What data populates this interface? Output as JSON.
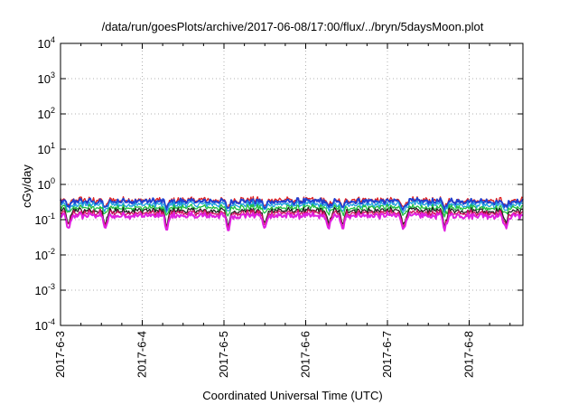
{
  "chart_data": {
    "type": "line",
    "title": "/data/run/goesPlots/archive/2017-06-08/17:00/flux/../bryn/5daysMoon.plot",
    "xlabel": "Coordinated Universal Time (UTC)",
    "ylabel": "cGy/day",
    "yscale": "log",
    "grid": true,
    "ylim": [
      0.0001,
      10000
    ],
    "xlim": [
      "2017-06-03",
      "2017-06-08 18:00"
    ],
    "x_ticks": [
      "2017-6-3",
      "2017-6-4",
      "2017-6-5",
      "2017-6-6",
      "2017-6-7",
      "2017-6-8"
    ],
    "y_ticks": [
      {
        "value": 0.0001,
        "base": "10",
        "exp": "-4"
      },
      {
        "value": 0.001,
        "base": "10",
        "exp": "-3"
      },
      {
        "value": 0.01,
        "base": "10",
        "exp": "-2"
      },
      {
        "value": 0.1,
        "base": "10",
        "exp": "-1"
      },
      {
        "value": 1,
        "base": "10",
        "exp": "0"
      },
      {
        "value": 10,
        "base": "10",
        "exp": "1"
      },
      {
        "value": 100,
        "base": "10",
        "exp": "2"
      },
      {
        "value": 1000,
        "base": "10",
        "exp": "3"
      },
      {
        "value": 10000,
        "base": "10",
        "exp": "4"
      }
    ],
    "series": [
      {
        "color": "#e02020",
        "level": 0.36
      },
      {
        "color": "#2040d0",
        "level": 0.33
      },
      {
        "color": "#20a0e0",
        "level": 0.27
      },
      {
        "color": "#20c040",
        "level": 0.22
      },
      {
        "color": "#202020",
        "level": 0.18
      },
      {
        "color": "#d01060",
        "level": 0.155
      },
      {
        "color": "#e020e0",
        "level": 0.13
      }
    ],
    "dips": [
      {
        "day": 0.1,
        "value": 0.06
      },
      {
        "day": 0.55,
        "value": 0.08
      },
      {
        "day": 1.3,
        "value": 0.08
      },
      {
        "day": 2.05,
        "value": 0.05
      },
      {
        "day": 2.5,
        "value": 0.08
      },
      {
        "day": 3.28,
        "value": 0.06
      },
      {
        "day": 3.45,
        "value": 0.08
      },
      {
        "day": 4.2,
        "value": 0.09
      },
      {
        "day": 4.7,
        "value": 0.1
      },
      {
        "day": 5.45,
        "value": 0.09
      }
    ]
  }
}
